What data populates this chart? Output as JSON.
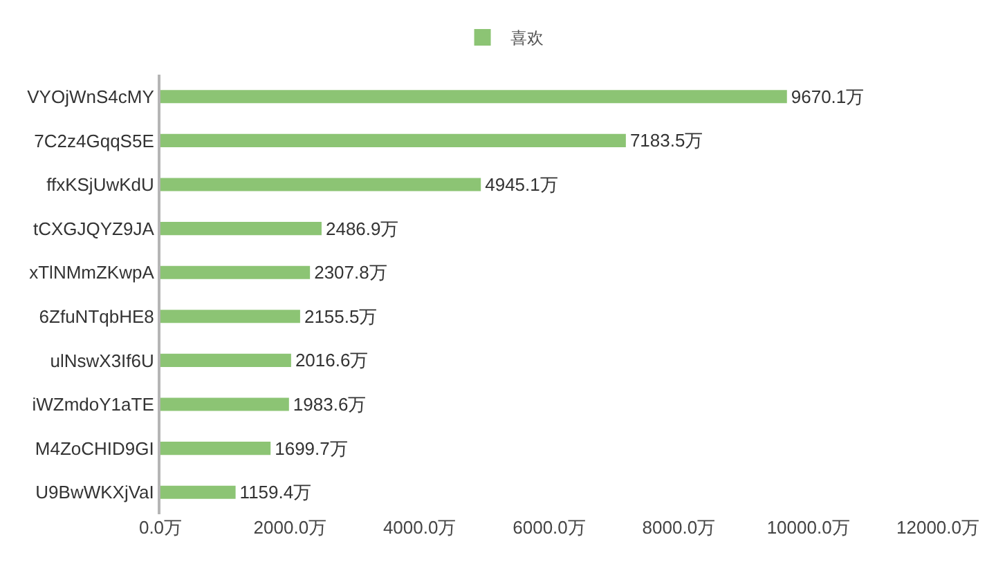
{
  "chart_data": {
    "type": "bar",
    "orientation": "horizontal",
    "categories": [
      "VYOjWnS4cMY",
      "7C2z4GqqS5E",
      "ffxKSjUwKdU",
      "tCXGJQYZ9JA",
      "xTlNMmZKwpA",
      "6ZfuNTqbHE8",
      "ulNswX3If6U",
      "iWZmdoY1aTE",
      "M4ZoCHID9GI",
      "U9BwWKXjVaI"
    ],
    "series": [
      {
        "name": "喜欢",
        "color": "#8cc474",
        "values": [
          9670.1,
          7183.5,
          4945.1,
          2486.9,
          2307.8,
          2155.5,
          2016.6,
          1983.6,
          1699.7,
          1159.4
        ],
        "value_labels": [
          "9670.1万",
          "7183.5万",
          "4945.1万",
          "2486.9万",
          "2307.8万",
          "2155.5万",
          "2016.6万",
          "1983.6万",
          "1699.7万",
          "1159.4万"
        ]
      }
    ],
    "xlim": [
      0,
      12000
    ],
    "xticks": [
      {
        "value": 0,
        "label": "0.0万"
      },
      {
        "value": 2000,
        "label": "2000.0万"
      },
      {
        "value": 4000,
        "label": "4000.0万"
      },
      {
        "value": 6000,
        "label": "6000.0万"
      },
      {
        "value": 8000,
        "label": "8000.0万"
      },
      {
        "value": 10000,
        "label": "10000.0万"
      },
      {
        "value": 12000,
        "label": "12000.0万"
      }
    ],
    "grid": false,
    "legend": "top"
  }
}
